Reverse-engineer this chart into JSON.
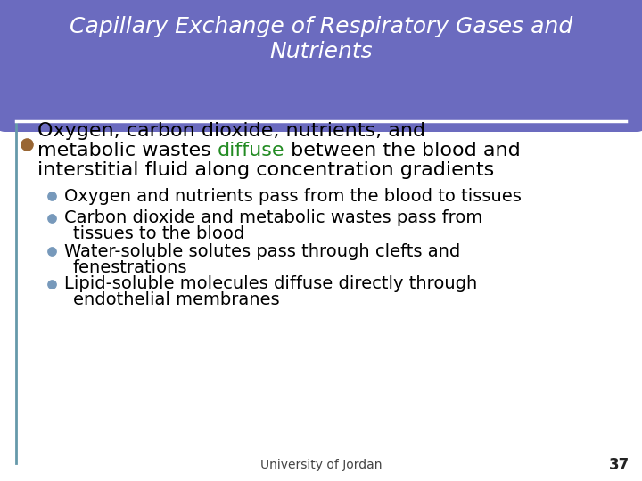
{
  "title_line1": "Capillary Exchange of Respiratory Gases and",
  "title_line2": "Nutrients",
  "title_bg_color": "#6B6BBF",
  "title_text_color": "#ffffff",
  "slide_bg_color": "#e8e8e8",
  "border_color": "#6699aa",
  "main_bullet_color": "#996633",
  "diffuse_word": "diffuse",
  "diffuse_color": "#228B22",
  "sub_bullet_color": "#7799bb",
  "footer_text": "University of Jordan",
  "footer_number": "37",
  "body_text_color": "#000000",
  "white_color": "#ffffff"
}
